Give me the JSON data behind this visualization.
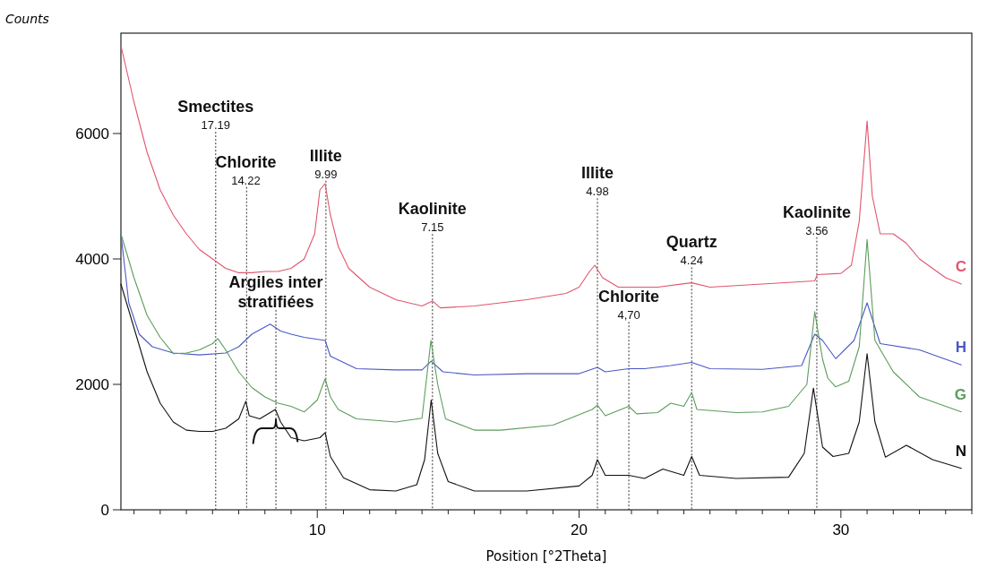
{
  "chart_data": {
    "type": "line",
    "xlabel": "Position [°2Theta]",
    "ylabel": "Counts",
    "xlim": [
      2.5,
      35
    ],
    "ylim": [
      0,
      7600
    ],
    "xticks": [
      {
        "value": 3,
        "label": null
      },
      {
        "value": 4,
        "label": null
      },
      {
        "value": 5,
        "label": null
      },
      {
        "value": 6,
        "label": null
      },
      {
        "value": 7,
        "label": null
      },
      {
        "value": 8,
        "label": null
      },
      {
        "value": 9,
        "label": null
      },
      10,
      {
        "value": 11,
        "label": null
      },
      {
        "value": 12,
        "label": null
      },
      {
        "value": 13,
        "label": null
      },
      {
        "value": 14,
        "label": null
      },
      {
        "value": 15,
        "label": null
      },
      {
        "value": 16,
        "label": null
      },
      {
        "value": 17,
        "label": null
      },
      {
        "value": 18,
        "label": null
      },
      {
        "value": 19,
        "label": null
      },
      20,
      {
        "value": 21,
        "label": null
      },
      {
        "value": 22,
        "label": null
      },
      {
        "value": 23,
        "label": null
      },
      {
        "value": 24,
        "label": null
      },
      {
        "value": 25,
        "label": null
      },
      {
        "value": 26,
        "label": null
      },
      {
        "value": 27,
        "label": null
      },
      {
        "value": 28,
        "label": null
      },
      {
        "value": 29,
        "label": null
      },
      30,
      {
        "value": 31,
        "label": null
      },
      {
        "value": 32,
        "label": null
      },
      {
        "value": 33,
        "label": null
      },
      {
        "value": 34,
        "label": null
      },
      {
        "value": 35,
        "label": null
      }
    ],
    "yticks": [
      0,
      2000,
      4000,
      6000
    ],
    "grid": false,
    "line_style": "solid",
    "series": [
      {
        "name": "C",
        "color": "#e0566e",
        "x": [
          2.5,
          3,
          3.5,
          4,
          4.5,
          5,
          5.5,
          6,
          6.5,
          7,
          7.5,
          8,
          8.5,
          9,
          9.5,
          9.9,
          10.1,
          10.3,
          10.5,
          10.8,
          11.2,
          12,
          13,
          14,
          14.4,
          14.7,
          16,
          18,
          19.5,
          20,
          20.4,
          20.6,
          20.9,
          21.5,
          23,
          24.3,
          25,
          27,
          29,
          29.1,
          30,
          30.4,
          30.7,
          31,
          31.2,
          31.5,
          32,
          32.5,
          33,
          34,
          34.6
        ],
        "values": [
          7400,
          6500,
          5700,
          5100,
          4700,
          4400,
          4150,
          4000,
          3850,
          3780,
          3780,
          3800,
          3800,
          3850,
          4000,
          4400,
          5100,
          5200,
          4700,
          4200,
          3850,
          3550,
          3350,
          3250,
          3330,
          3220,
          3250,
          3350,
          3450,
          3550,
          3800,
          3900,
          3700,
          3550,
          3550,
          3620,
          3550,
          3600,
          3650,
          3750,
          3770,
          3900,
          4600,
          6200,
          5000,
          4400,
          4400,
          4250,
          4000,
          3700,
          3600
        ]
      },
      {
        "name": "H",
        "color": "#4a58c4",
        "x": [
          2.5,
          2.8,
          3.2,
          3.7,
          4.5,
          5.5,
          6.5,
          7,
          7.5,
          8.2,
          8.6,
          9,
          9.5,
          10.3,
          10.5,
          11.5,
          13,
          14,
          14.35,
          14.8,
          16,
          18,
          20,
          20.7,
          21,
          21.9,
          22.5,
          23.5,
          24.3,
          25,
          27,
          28.5,
          29,
          29.3,
          29.8,
          30.5,
          31,
          31.5,
          33,
          34.6
        ],
        "values": [
          4400,
          3300,
          2800,
          2600,
          2500,
          2470,
          2500,
          2600,
          2800,
          2960,
          2850,
          2800,
          2750,
          2700,
          2450,
          2250,
          2230,
          2230,
          2370,
          2200,
          2150,
          2170,
          2170,
          2270,
          2200,
          2250,
          2250,
          2300,
          2350,
          2250,
          2240,
          2300,
          2800,
          2700,
          2410,
          2700,
          3300,
          2650,
          2550,
          2310
        ]
      },
      {
        "name": "G",
        "color": "#5c9c5c",
        "x": [
          2.5,
          3,
          3.5,
          4,
          4.5,
          5,
          5.5,
          6,
          6.2,
          6.5,
          7,
          7.5,
          8,
          8.5,
          9,
          9.5,
          10,
          10.3,
          10.5,
          10.8,
          11.5,
          13,
          14,
          14.34,
          14.6,
          14.9,
          16,
          17,
          19,
          20.5,
          20.7,
          21,
          21.9,
          22.2,
          23,
          23.5,
          24,
          24.3,
          24.5,
          26,
          27,
          28,
          28.7,
          29,
          29.3,
          29.5,
          29.8,
          30.3,
          30.7,
          31,
          31.3,
          32,
          33,
          34.6
        ],
        "values": [
          4400,
          3700,
          3100,
          2750,
          2490,
          2500,
          2550,
          2650,
          2730,
          2550,
          2200,
          1950,
          1800,
          1700,
          1650,
          1560,
          1750,
          2090,
          1800,
          1600,
          1450,
          1400,
          1460,
          2700,
          2000,
          1450,
          1270,
          1270,
          1350,
          1600,
          1670,
          1500,
          1650,
          1530,
          1550,
          1700,
          1650,
          1870,
          1600,
          1550,
          1560,
          1650,
          2000,
          3160,
          2400,
          2100,
          1960,
          2050,
          2600,
          4310,
          2700,
          2200,
          1800,
          1560
        ]
      },
      {
        "name": "N",
        "color": "#111111",
        "x": [
          2.5,
          3,
          3.5,
          4,
          4.5,
          5,
          5.5,
          6,
          6.5,
          7,
          7.27,
          7.4,
          7.8,
          8.4,
          8.6,
          9,
          9.5,
          10.1,
          10.3,
          10.5,
          11,
          12,
          13,
          13.8,
          14.1,
          14.35,
          14.6,
          15,
          16,
          18,
          20,
          20.5,
          20.7,
          21,
          21.9,
          22.5,
          23.2,
          24,
          24.3,
          24.6,
          26,
          28,
          28.6,
          28.95,
          29.3,
          29.7,
          30.3,
          30.7,
          31,
          31.3,
          31.7,
          32.5,
          33.5,
          34.6
        ],
        "values": [
          3600,
          2900,
          2200,
          1700,
          1400,
          1270,
          1250,
          1250,
          1300,
          1450,
          1730,
          1500,
          1450,
          1600,
          1400,
          1150,
          1100,
          1150,
          1230,
          850,
          510,
          320,
          300,
          400,
          800,
          1750,
          900,
          450,
          300,
          300,
          380,
          550,
          800,
          550,
          550,
          500,
          650,
          550,
          850,
          550,
          500,
          520,
          900,
          1940,
          1000,
          850,
          900,
          1400,
          2490,
          1400,
          840,
          1030,
          800,
          660
        ]
      }
    ],
    "ref_lines": [
      {
        "axis": "x",
        "value": 6.12,
        "line_style": "dotted"
      },
      {
        "axis": "x",
        "value": 7.3,
        "line_style": "dotted"
      },
      {
        "axis": "x",
        "value": 8.42,
        "line_style": "dotted"
      },
      {
        "axis": "x",
        "value": 10.33,
        "line_style": "dotted"
      },
      {
        "axis": "x",
        "value": 14.4,
        "line_style": "dotted"
      },
      {
        "axis": "x",
        "value": 20.7,
        "line_style": "dotted"
      },
      {
        "axis": "x",
        "value": 21.9,
        "line_style": "dotted"
      },
      {
        "axis": "x",
        "value": 24.3,
        "line_style": "dotted"
      },
      {
        "axis": "x",
        "value": 29.08,
        "line_style": "dotted"
      }
    ],
    "annotations": [
      {
        "text": "Smectites\n17.19",
        "x": 6.12,
        "y": 6070
      },
      {
        "text": "Chlorite\n14.22",
        "x": 7.27,
        "y": 5190
      },
      {
        "text": "Argiles inter\nstratifiées",
        "x": 8.42,
        "y": 3230
      },
      {
        "text": "Illite\n9.99",
        "x": 10.33,
        "y": 5290
      },
      {
        "text": "Kaolinite\n7.15",
        "x": 14.4,
        "y": 4440
      },
      {
        "text": "Illite\n4.98",
        "x": 20.7,
        "y": 5010
      },
      {
        "text": "Chlorite\n4,70",
        "x": 21.9,
        "y": 3040
      },
      {
        "text": "Quartz\n4.24",
        "x": 24.3,
        "y": 3910
      },
      {
        "text": "Kaolinite\n3.56",
        "x": 29.08,
        "y": 4390
      }
    ]
  }
}
